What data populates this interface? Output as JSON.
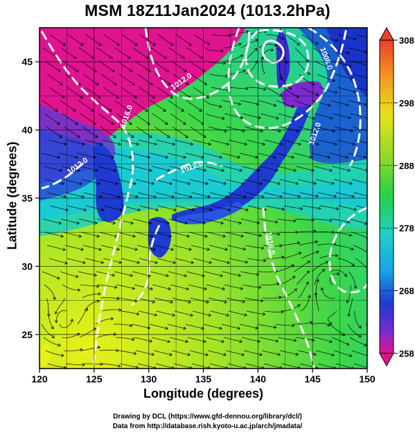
{
  "title": "MSM 18Z11Jan2024 (1013.2hPa)",
  "map": {
    "xlabel": "Longitude (degrees)",
    "ylabel": "Latitude  (degrees)",
    "lon_range": [
      120,
      150
    ],
    "lat_range": [
      22.5,
      47.5
    ],
    "lon_ticks": [
      "120",
      "125",
      "130",
      "135",
      "140",
      "145",
      "150"
    ],
    "lat_ticks": [
      "25",
      "30",
      "35",
      "40",
      "45"
    ],
    "isobar_labels": [
      "1012.0",
      "1016.0",
      "1008.0",
      "1012.0",
      "1016.0",
      "1012.0",
      "1012.0"
    ]
  },
  "colorbar": {
    "labels": [
      "308",
      "298",
      "288",
      "278",
      "268",
      "258"
    ],
    "min": 258,
    "max": 308
  },
  "credits": {
    "line1": "Drawing by DCL (https://www.gfd-dennou.org/library/dcl/)",
    "line2": "Data from http://database.rish.kyoto-u.ac.jp/arch/jmadata/"
  },
  "colors": {
    "cold": "#e0148f",
    "cool": "#1f3ad0",
    "mid": "#18d0d0",
    "warm": "#2fd42f",
    "hot": "#c8e818",
    "isobar": "#ffffff"
  }
}
